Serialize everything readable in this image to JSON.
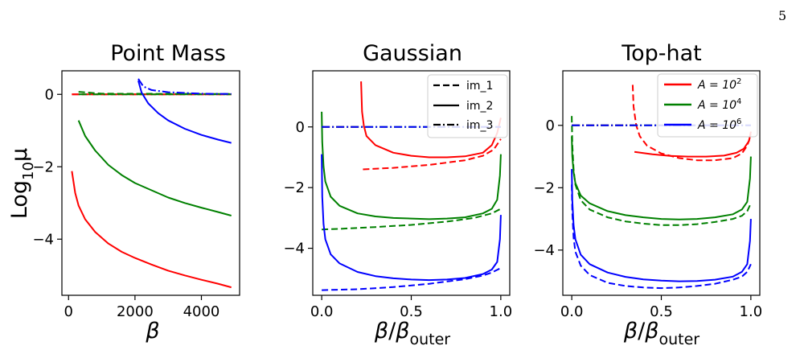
{
  "page_number": "5",
  "chart_data": [
    {
      "type": "line",
      "title": "Point Mass",
      "xlabel": "β",
      "ylabel": "Log₁₀μ",
      "xlim": [
        -200,
        5150
      ],
      "ylim": [
        -5.55,
        0.65
      ],
      "xticks": [
        0,
        2000,
        4000
      ],
      "xtick_labels": [
        "0",
        "2000",
        "4000"
      ],
      "yticks": [
        0,
        -2,
        -4
      ],
      "ytick_labels": [
        "0",
        "−2",
        "−4"
      ],
      "grid": false,
      "series": [
        {
          "color": "#ff0000",
          "dash": "solid",
          "x": [
            100,
            200,
            300,
            500,
            800,
            1200,
            1600,
            2000,
            2500,
            3000,
            3500,
            4000,
            4500,
            4900
          ],
          "y": [
            -2.12,
            -2.72,
            -3.07,
            -3.45,
            -3.8,
            -4.12,
            -4.35,
            -4.52,
            -4.7,
            -4.87,
            -5.0,
            -5.12,
            -5.23,
            -5.33
          ]
        },
        {
          "color": "#ff0000",
          "dash": "dash",
          "x": [
            100,
            4900
          ],
          "y": [
            0.0,
            0.0
          ]
        },
        {
          "color": "#ff0000",
          "dash": "dashdot",
          "x": [
            100,
            4900
          ],
          "y": [
            0.0,
            0.0
          ]
        },
        {
          "color": "#008000",
          "dash": "solid",
          "x": [
            300,
            500,
            800,
            1200,
            1600,
            2000,
            2500,
            3000,
            3500,
            4000,
            4500,
            4900
          ],
          "y": [
            -0.72,
            -1.15,
            -1.55,
            -1.95,
            -2.23,
            -2.45,
            -2.65,
            -2.85,
            -3.0,
            -3.13,
            -3.25,
            -3.35
          ]
        },
        {
          "color": "#008000",
          "dash": "dash",
          "x": [
            300,
            1000,
            4900
          ],
          "y": [
            0.07,
            0.02,
            0.01
          ]
        },
        {
          "color": "#008000",
          "dash": "dashdot",
          "x": [
            300,
            4900
          ],
          "y": [
            0.0,
            0.0
          ]
        },
        {
          "color": "#0000ff",
          "dash": "solid",
          "x": [
            2100,
            2200,
            2400,
            2700,
            3000,
            3500,
            4000,
            4500,
            4900
          ],
          "y": [
            0.38,
            0.05,
            -0.25,
            -0.52,
            -0.72,
            -0.95,
            -1.12,
            -1.25,
            -1.34
          ]
        },
        {
          "color": "#0000ff",
          "dash": "dashdot",
          "x": [
            2100,
            2250,
            2500,
            3000,
            4000,
            4900
          ],
          "y": [
            0.43,
            0.22,
            0.12,
            0.06,
            0.02,
            0.01
          ]
        }
      ]
    },
    {
      "type": "line",
      "title": "Gaussian",
      "xlabel": "β/β_outer",
      "ylabel": "",
      "xlim": [
        -0.05,
        1.05
      ],
      "ylim": [
        -5.55,
        1.85
      ],
      "xticks": [
        0,
        0.5,
        1.0
      ],
      "xtick_labels": [
        "0.0",
        "0.5",
        "1.0"
      ],
      "yticks": [
        0,
        -2,
        -4
      ],
      "ytick_labels": [
        "0",
        "−2",
        "−4"
      ],
      "grid": false,
      "legend": {
        "location": "upper-right",
        "entries": [
          {
            "label": "im_1",
            "dash": "dash"
          },
          {
            "label": "im_2",
            "dash": "solid"
          },
          {
            "label": "im_3",
            "dash": "dashdot"
          }
        ]
      },
      "series": [
        {
          "color": "#ff0000",
          "dash": "solid",
          "x": [
            0.22,
            0.225,
            0.235,
            0.25,
            0.3,
            0.4,
            0.5,
            0.6,
            0.7,
            0.8,
            0.9,
            0.95,
            0.98,
            1.0
          ],
          "y": [
            1.5,
            0.5,
            0.05,
            -0.3,
            -0.6,
            -0.85,
            -0.95,
            -1.0,
            -1.0,
            -0.97,
            -0.85,
            -0.6,
            -0.2,
            0.3
          ]
        },
        {
          "color": "#ff0000",
          "dash": "dash",
          "x": [
            0.23,
            0.4,
            0.6,
            0.8,
            0.9,
            0.96,
            1.0
          ],
          "y": [
            -1.4,
            -1.35,
            -1.25,
            -1.1,
            -0.95,
            -0.75,
            -0.4
          ]
        },
        {
          "color": "#ff0000",
          "dash": "dashdot",
          "x": [
            0.0,
            0.24
          ],
          "y": [
            0.0,
            0.0
          ]
        },
        {
          "color": "#008000",
          "dash": "solid",
          "x": [
            0.0,
            0.003,
            0.01,
            0.02,
            0.05,
            0.1,
            0.2,
            0.3,
            0.4,
            0.5,
            0.6,
            0.7,
            0.8,
            0.9,
            0.95,
            0.98,
            0.995,
            1.0
          ],
          "y": [
            0.5,
            -0.5,
            -1.3,
            -1.8,
            -2.3,
            -2.6,
            -2.85,
            -2.95,
            -3.0,
            -3.02,
            -3.04,
            -3.02,
            -2.98,
            -2.85,
            -2.7,
            -2.4,
            -1.6,
            -0.9
          ]
        },
        {
          "color": "#008000",
          "dash": "dash",
          "x": [
            0.0,
            0.1,
            0.3,
            0.5,
            0.7,
            0.85,
            0.95,
            1.0
          ],
          "y": [
            -3.38,
            -3.36,
            -3.3,
            -3.23,
            -3.12,
            -3.0,
            -2.85,
            -2.7
          ]
        },
        {
          "color": "#008000",
          "dash": "dashdot",
          "x": [
            0.0,
            1.0
          ],
          "y": [
            0.0,
            0.0
          ]
        },
        {
          "color": "#0000ff",
          "dash": "solid",
          "x": [
            0.0,
            0.003,
            0.01,
            0.02,
            0.05,
            0.1,
            0.2,
            0.3,
            0.4,
            0.5,
            0.6,
            0.7,
            0.8,
            0.9,
            0.95,
            0.98,
            0.995,
            1.0
          ],
          "y": [
            -0.9,
            -2.3,
            -3.2,
            -3.7,
            -4.2,
            -4.5,
            -4.78,
            -4.92,
            -4.99,
            -5.03,
            -5.05,
            -5.03,
            -4.98,
            -4.85,
            -4.7,
            -4.45,
            -3.7,
            -2.9
          ]
        },
        {
          "color": "#0000ff",
          "dash": "dash",
          "x": [
            0.0,
            0.2,
            0.4,
            0.6,
            0.8,
            0.9,
            0.95,
            1.0
          ],
          "y": [
            -5.38,
            -5.35,
            -5.28,
            -5.17,
            -5.02,
            -4.9,
            -4.8,
            -4.65
          ]
        },
        {
          "color": "#0000ff",
          "dash": "dashdot",
          "x": [
            0.0,
            1.0
          ],
          "y": [
            0.0,
            0.0
          ]
        }
      ]
    },
    {
      "type": "line",
      "title": "Top-hat",
      "xlabel": "β/β_outer",
      "ylabel": "",
      "xlim": [
        -0.05,
        1.05
      ],
      "ylim": [
        -5.45,
        1.75
      ],
      "xticks": [
        0,
        0.5,
        1.0
      ],
      "xtick_labels": [
        "0.0",
        "0.5",
        "1.0"
      ],
      "yticks": [
        0,
        -2,
        -4
      ],
      "ytick_labels": [
        "0",
        "−2",
        "−4"
      ],
      "grid": false,
      "legend": {
        "location": "upper-right",
        "entries": [
          {
            "label_main": "A = 10",
            "label_exp": "2",
            "color": "#ff0000"
          },
          {
            "label_main": "A = 10",
            "label_exp": "4",
            "color": "#008000"
          },
          {
            "label_main": "A = 10",
            "label_exp": "6",
            "color": "#0000ff"
          }
        ]
      },
      "series": [
        {
          "color": "#ff0000",
          "dash": "solid",
          "x": [
            0.35,
            0.45,
            0.55,
            0.65,
            0.75,
            0.85,
            0.92,
            0.96,
            0.99,
            1.0
          ],
          "y": [
            -0.85,
            -0.93,
            -0.98,
            -1.0,
            -1.0,
            -0.97,
            -0.88,
            -0.75,
            -0.5,
            -0.2
          ]
        },
        {
          "color": "#ff0000",
          "dash": "dash",
          "x": [
            0.34,
            0.345,
            0.36,
            0.38,
            0.42,
            0.5,
            0.6,
            0.7,
            0.8,
            0.9,
            0.95,
            0.98,
            1.0
          ],
          "y": [
            1.3,
            0.6,
            0.0,
            -0.35,
            -0.65,
            -0.9,
            -1.05,
            -1.12,
            -1.12,
            -1.05,
            -0.9,
            -0.65,
            -0.3
          ]
        },
        {
          "color": "#ff0000",
          "dash": "dashdot",
          "x": [
            0.0,
            0.35
          ],
          "y": [
            0.0,
            0.0
          ]
        },
        {
          "color": "#008000",
          "dash": "solid",
          "x": [
            0.0,
            0.003,
            0.01,
            0.02,
            0.05,
            0.1,
            0.2,
            0.3,
            0.4,
            0.5,
            0.6,
            0.7,
            0.8,
            0.9,
            0.95,
            0.98,
            0.995,
            1.0
          ],
          "y": [
            -0.35,
            -1.0,
            -1.5,
            -1.85,
            -2.25,
            -2.5,
            -2.75,
            -2.88,
            -2.95,
            -3.0,
            -3.02,
            -3.0,
            -2.95,
            -2.85,
            -2.7,
            -2.45,
            -1.7,
            -1.0
          ]
        },
        {
          "color": "#008000",
          "dash": "dash",
          "x": [
            0.0,
            0.003,
            0.01,
            0.02,
            0.05,
            0.1,
            0.2,
            0.3,
            0.4,
            0.5,
            0.6,
            0.7,
            0.8,
            0.9,
            0.95,
            0.98,
            1.0
          ],
          "y": [
            0.3,
            -0.6,
            -1.4,
            -1.9,
            -2.4,
            -2.7,
            -2.95,
            -3.08,
            -3.15,
            -3.2,
            -3.2,
            -3.17,
            -3.1,
            -3.0,
            -2.9,
            -2.75,
            -2.5
          ]
        },
        {
          "color": "#008000",
          "dash": "dashdot",
          "x": [
            0.0,
            1.0
          ],
          "y": [
            0.0,
            0.0
          ]
        },
        {
          "color": "#0000ff",
          "dash": "solid",
          "x": [
            0.0,
            0.003,
            0.01,
            0.02,
            0.05,
            0.1,
            0.2,
            0.3,
            0.4,
            0.5,
            0.6,
            0.7,
            0.8,
            0.9,
            0.95,
            0.98,
            0.995,
            1.0
          ],
          "y": [
            -1.4,
            -2.4,
            -3.2,
            -3.65,
            -4.15,
            -4.45,
            -4.72,
            -4.86,
            -4.94,
            -4.98,
            -5.0,
            -4.99,
            -4.95,
            -4.85,
            -4.7,
            -4.45,
            -3.7,
            -3.0
          ]
        },
        {
          "color": "#0000ff",
          "dash": "dash",
          "x": [
            0.0,
            0.003,
            0.01,
            0.02,
            0.05,
            0.1,
            0.2,
            0.3,
            0.4,
            0.5,
            0.6,
            0.7,
            0.8,
            0.9,
            0.95,
            0.98,
            1.0
          ],
          "y": [
            -1.9,
            -2.8,
            -3.6,
            -4.05,
            -4.5,
            -4.8,
            -5.05,
            -5.15,
            -5.2,
            -5.22,
            -5.2,
            -5.15,
            -5.08,
            -4.95,
            -4.85,
            -4.7,
            -4.45
          ]
        },
        {
          "color": "#0000ff",
          "dash": "dashdot",
          "x": [
            0.0,
            1.0
          ],
          "y": [
            0.0,
            0.0
          ]
        }
      ]
    }
  ]
}
